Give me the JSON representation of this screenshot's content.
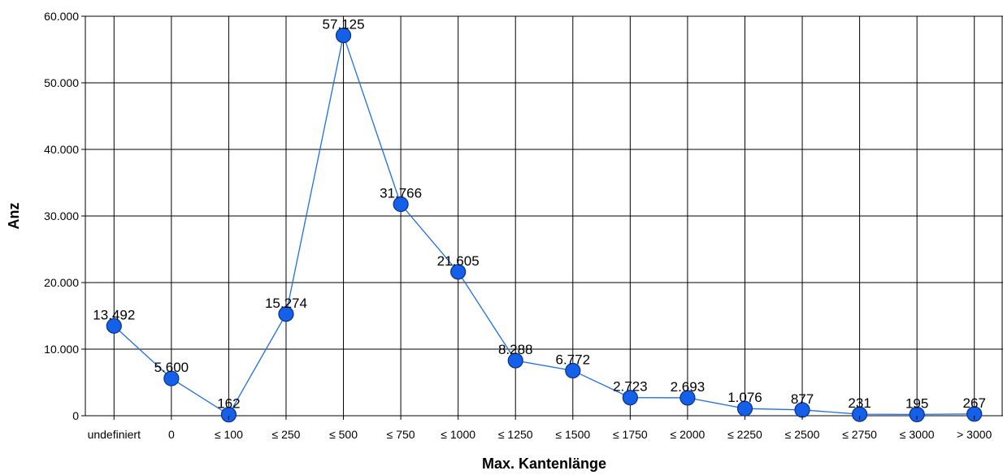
{
  "chart_data": {
    "type": "line",
    "xlabel": "Max. Kantenlänge",
    "ylabel": "Anz",
    "categories": [
      "undefiniert",
      "0",
      "≤ 100",
      "≤ 250",
      "≤ 500",
      "≤ 750",
      "≤ 1000",
      "≤ 1250",
      "≤ 1500",
      "≤ 1750",
      "≤ 2000",
      "≤ 2250",
      "≤ 2500",
      "≤ 2750",
      "≤ 3000",
      "> 3000"
    ],
    "values": [
      13492,
      5600,
      162,
      15274,
      57125,
      31766,
      21605,
      8288,
      6772,
      2723,
      2693,
      1076,
      877,
      231,
      195,
      267
    ],
    "value_labels": [
      "13.492",
      "5.600",
      "162",
      "15.274",
      "57.125",
      "31.766",
      "21.605",
      "8.288",
      "6.772",
      "2.723",
      "2.693",
      "1.076",
      "877",
      "231",
      "195",
      "267"
    ],
    "ylim": [
      0,
      60000
    ],
    "yticks": [
      0,
      10000,
      20000,
      30000,
      40000,
      50000,
      60000
    ],
    "ytick_labels": [
      "0",
      "10.000",
      "20.000",
      "30.000",
      "40.000",
      "50.000",
      "60.000"
    ],
    "grid": true,
    "legend": "none",
    "colors": {
      "line": "#1e6fe0",
      "marker": "#1560e8",
      "marker_stroke": "#0a2f8a",
      "grid": "#000000"
    }
  }
}
